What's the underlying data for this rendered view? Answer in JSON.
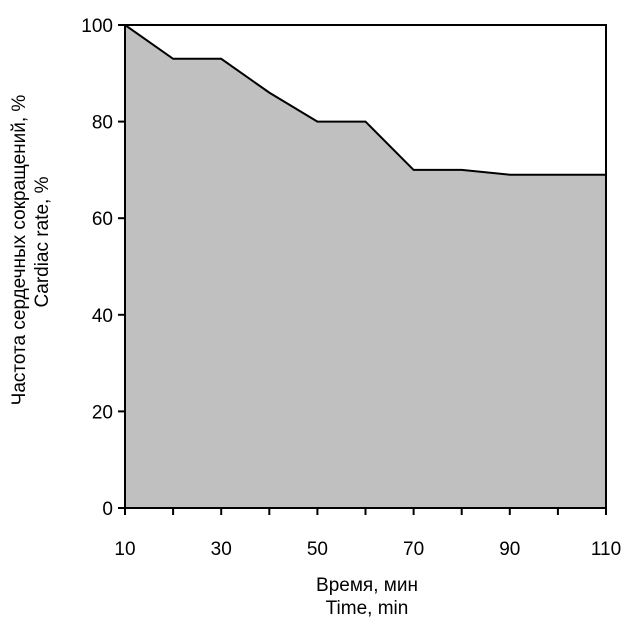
{
  "chart_data": {
    "type": "area",
    "x": [
      10,
      20,
      30,
      40,
      50,
      60,
      70,
      80,
      90,
      100,
      110
    ],
    "series": [
      {
        "values": [
          100,
          93,
          93,
          86,
          80,
          80,
          70,
          70,
          69,
          69,
          69
        ]
      }
    ],
    "xlim": [
      10,
      110
    ],
    "ylim": [
      0,
      100
    ],
    "x_tick_labels": [
      "10",
      "30",
      "50",
      "70",
      "90",
      "110"
    ],
    "x_minor_ticks": [
      20,
      40,
      60,
      80,
      100
    ],
    "y_tick_labels": [
      "0",
      "20",
      "40",
      "60",
      "80",
      "100"
    ],
    "xlabel_lines": [
      "Время,  мин",
      "Time,  min"
    ],
    "ylabel_lines": [
      "Частота сердечных сокращений, %",
      "Cardiac rate, %"
    ],
    "grid": false,
    "fill_color": "#c0c0c0",
    "line_color": "#000000"
  }
}
